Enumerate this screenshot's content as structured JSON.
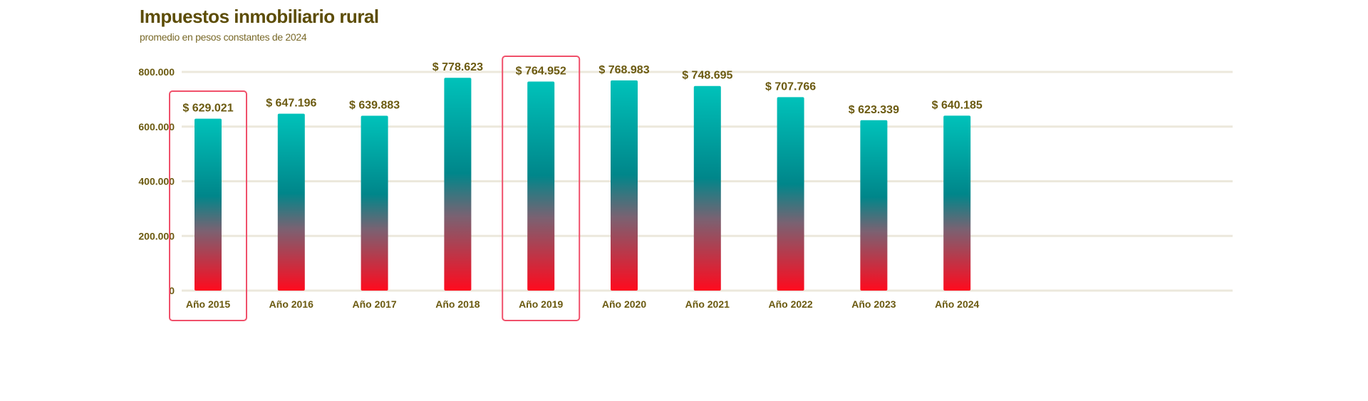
{
  "chart_data": {
    "type": "bar",
    "title": "Impuestos inmobiliario rural",
    "subtitle": "promedio en pesos constantes de 2024",
    "xlabel": "",
    "ylabel": "",
    "ylim": [
      0,
      800000
    ],
    "yticks": [
      0,
      200000,
      400000,
      600000,
      800000
    ],
    "ytick_labels": [
      "0",
      "200.000",
      "400.000",
      "600.000",
      "800.000"
    ],
    "grid": true,
    "categories": [
      "Año 2015",
      "Año 2016",
      "Año 2017",
      "Año 2018",
      "Año 2019",
      "Año 2020",
      "Año 2021",
      "Año 2022",
      "Año 2023",
      "Año 2024"
    ],
    "values": [
      629021,
      647196,
      639883,
      778623,
      764952,
      768983,
      748695,
      707766,
      623339,
      640185
    ],
    "data_labels": [
      "$ 629.021",
      "$ 647.196",
      "$ 639.883",
      "$ 778.623",
      "$ 764.952",
      "$ 768.983",
      "$ 748.695",
      "$ 707.766",
      "$ 623.339",
      "$ 640.185"
    ],
    "highlighted": [
      "Año 2015",
      "Año 2019"
    ],
    "colors": {
      "bar_top": "#00c2ba",
      "bar_mid": "#00868a",
      "bar_mauve": "#7a6272",
      "bar_bottom": "#ff0a1e",
      "highlight": "#f0506a",
      "grid": "#ece8dc",
      "text": "#6b5a10"
    }
  }
}
